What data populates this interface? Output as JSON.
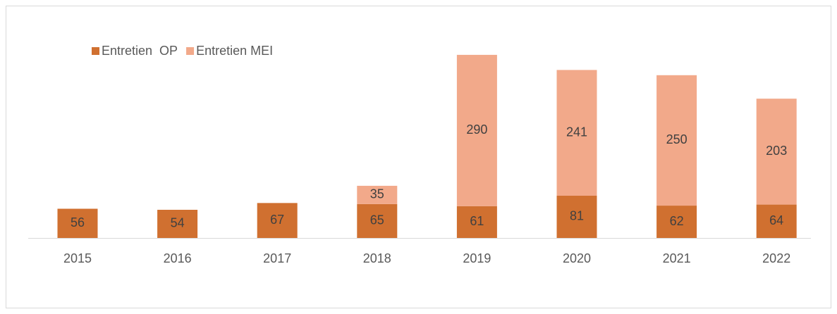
{
  "chart_data": {
    "type": "stacked-bar",
    "categories": [
      "2015",
      "2016",
      "2017",
      "2018",
      "2019",
      "2020",
      "2021",
      "2022"
    ],
    "series": [
      {
        "name": "Entretien  OP",
        "color": "#d07030",
        "values": [
          56,
          54,
          67,
          65,
          61,
          81,
          62,
          64
        ]
      },
      {
        "name": "Entretien MEI",
        "color": "#f2a98a",
        "values": [
          null,
          null,
          null,
          35,
          290,
          241,
          250,
          203
        ]
      }
    ],
    "legend": "top-left"
  }
}
